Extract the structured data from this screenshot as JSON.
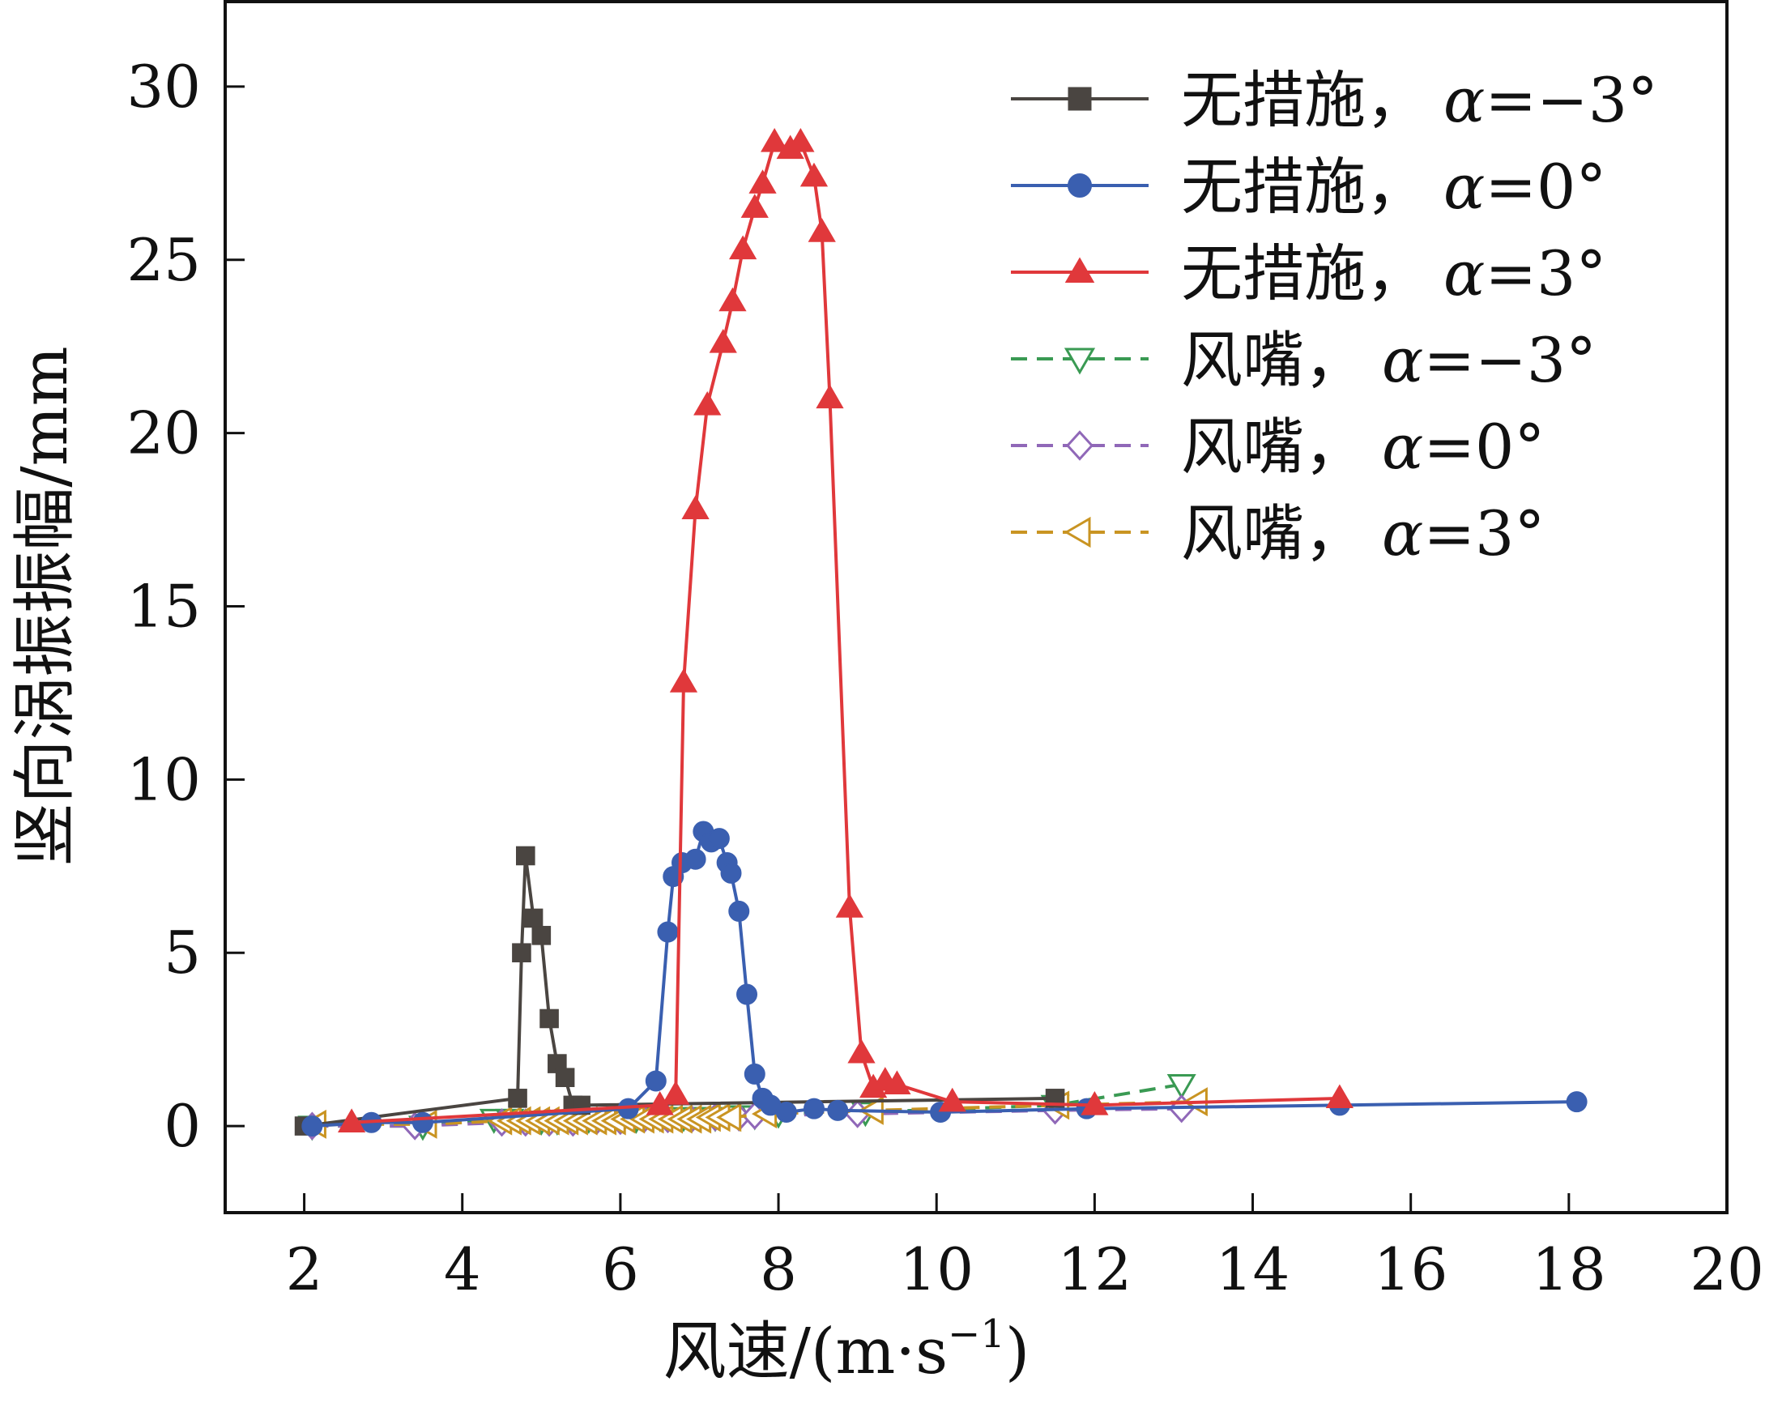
{
  "chart_data": {
    "type": "line",
    "title": "",
    "xlabel": "风速/(m·s",
    "xlabel_sup": "−1",
    "xlabel_close": ")",
    "ylabel": "竖向涡振振幅/mm",
    "xlim": [
      1,
      20
    ],
    "ylim": [
      -2.5,
      32.5
    ],
    "xticks": [
      2,
      4,
      6,
      8,
      10,
      12,
      14,
      16,
      18,
      20
    ],
    "xtick_labels": [
      "2",
      "4",
      "6",
      "8",
      "10",
      "12",
      "14",
      "16",
      "18",
      "20"
    ],
    "yticks": [
      0,
      5,
      10,
      15,
      20,
      25,
      30
    ],
    "ytick_labels": [
      "0",
      "5",
      "10",
      "15",
      "20",
      "25",
      "30"
    ],
    "legend_position": "top-right",
    "series": [
      {
        "name": "无措施，",
        "alpha_symbol": "α",
        "alpha_value": "=−3°",
        "color": "#4a4541",
        "marker": "square",
        "filled": true,
        "dashed": false,
        "x": [
          2.0,
          4.7,
          4.75,
          4.8,
          4.9,
          5.0,
          5.1,
          5.2,
          5.3,
          5.4,
          5.5,
          11.5
        ],
        "y": [
          0.0,
          0.8,
          5.0,
          7.8,
          6.0,
          5.5,
          3.1,
          1.8,
          1.4,
          0.6,
          0.6,
          0.8
        ]
      },
      {
        "name": "无措施，",
        "alpha_symbol": "α",
        "alpha_value": "=0°",
        "color": "#3a5fb0",
        "marker": "circle",
        "filled": true,
        "dashed": false,
        "x": [
          2.1,
          2.85,
          3.5,
          6.1,
          6.45,
          6.6,
          6.67,
          6.78,
          6.95,
          7.05,
          7.15,
          7.25,
          7.35,
          7.4,
          7.5,
          7.6,
          7.7,
          7.8,
          7.9,
          8.1,
          8.45,
          8.75,
          10.05,
          11.9,
          15.1,
          18.1
        ],
        "y": [
          0.0,
          0.1,
          0.1,
          0.5,
          1.3,
          5.6,
          7.2,
          7.6,
          7.7,
          8.5,
          8.2,
          8.3,
          7.6,
          7.3,
          6.2,
          3.8,
          1.5,
          0.8,
          0.6,
          0.4,
          0.5,
          0.45,
          0.4,
          0.5,
          0.6,
          0.7
        ]
      },
      {
        "name": "无措施，",
        "alpha_symbol": "α",
        "alpha_value": "=3°",
        "color": "#e0383b",
        "marker": "triangle-up",
        "filled": true,
        "dashed": false,
        "x": [
          2.6,
          6.5,
          6.7,
          6.8,
          6.95,
          7.1,
          7.3,
          7.42,
          7.55,
          7.7,
          7.8,
          7.95,
          8.15,
          8.28,
          8.45,
          8.55,
          8.65,
          8.9,
          9.05,
          9.2,
          9.35,
          9.5,
          10.2,
          12.0,
          15.1
        ],
        "y": [
          0.1,
          0.6,
          0.9,
          12.8,
          17.8,
          20.8,
          22.6,
          23.8,
          25.3,
          26.5,
          27.2,
          28.4,
          28.2,
          28.4,
          27.4,
          25.8,
          21.0,
          6.3,
          2.1,
          1.1,
          1.3,
          1.2,
          0.7,
          0.6,
          0.8
        ]
      },
      {
        "name": "风嘴，",
        "alpha_symbol": "α",
        "alpha_value": "=−3°",
        "color": "#3a9a53",
        "marker": "triangle-down",
        "filled": false,
        "dashed": true,
        "x": [
          2.1,
          3.5,
          4.4,
          4.6,
          4.8,
          5.0,
          5.2,
          5.4,
          5.6,
          5.8,
          6.0,
          6.2,
          6.5,
          6.8,
          7.0,
          7.2,
          7.5,
          7.7,
          8.0,
          9.1,
          11.5,
          13.1
        ],
        "y": [
          0.0,
          0.0,
          0.2,
          0.2,
          0.15,
          0.15,
          0.15,
          0.15,
          0.2,
          0.2,
          0.2,
          0.2,
          0.25,
          0.25,
          0.25,
          0.25,
          0.3,
          0.3,
          0.35,
          0.4,
          0.6,
          1.2
        ]
      },
      {
        "name": "风嘴，",
        "alpha_symbol": "α",
        "alpha_value": "=0°",
        "color": "#9068b8",
        "marker": "diamond",
        "filled": false,
        "dashed": true,
        "x": [
          2.1,
          3.4,
          4.5,
          4.8,
          5.1,
          5.4,
          5.7,
          6.0,
          6.3,
          6.6,
          6.9,
          7.2,
          7.5,
          7.7,
          9.0,
          11.5,
          13.1
        ],
        "y": [
          0.0,
          0.0,
          0.1,
          0.1,
          0.1,
          0.1,
          0.15,
          0.15,
          0.2,
          0.2,
          0.2,
          0.25,
          0.25,
          0.3,
          0.35,
          0.45,
          0.5
        ]
      },
      {
        "name": "风嘴，",
        "alpha_symbol": "α",
        "alpha_value": "=3°",
        "color": "#c99422",
        "marker": "triangle-left",
        "filled": false,
        "dashed": true,
        "x": [
          2.15,
          3.55,
          4.5,
          4.62,
          4.74,
          4.86,
          4.98,
          5.1,
          5.22,
          5.34,
          5.46,
          5.58,
          5.7,
          5.82,
          5.94,
          6.06,
          6.18,
          6.3,
          6.42,
          6.54,
          6.66,
          6.78,
          6.9,
          7.02,
          7.14,
          7.26,
          7.4,
          7.85,
          9.2,
          11.55,
          13.3
        ],
        "y": [
          0.05,
          0.05,
          0.15,
          0.15,
          0.15,
          0.15,
          0.15,
          0.15,
          0.15,
          0.15,
          0.15,
          0.15,
          0.15,
          0.15,
          0.15,
          0.2,
          0.2,
          0.2,
          0.2,
          0.2,
          0.2,
          0.2,
          0.2,
          0.2,
          0.25,
          0.25,
          0.25,
          0.35,
          0.45,
          0.6,
          0.7
        ]
      }
    ]
  }
}
